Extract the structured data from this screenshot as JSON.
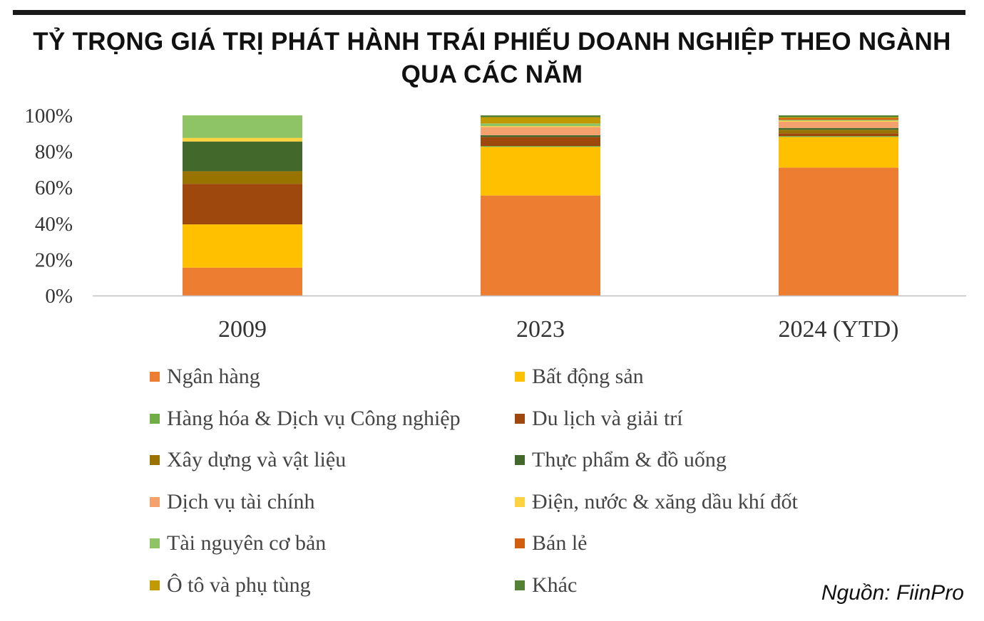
{
  "title_line1": "TỶ TRỌNG GIÁ TRỊ PHÁT HÀNH TRÁI PHIẾU DOANH NGHIỆP THEO NGÀNH",
  "title_line2": "QUA CÁC NĂM",
  "source": "Nguồn: FiinPro",
  "chart_data": {
    "type": "bar",
    "stacked": true,
    "categories": [
      "2009",
      "2023",
      "2024 (YTD)"
    ],
    "ylim": [
      0,
      100
    ],
    "yticks": [
      "0%",
      "20%",
      "40%",
      "60%",
      "80%",
      "100%"
    ],
    "grid": false,
    "legend_position": "bottom",
    "series": [
      {
        "name": "Ngân hàng",
        "color": "#ED7D31",
        "values": [
          15.5,
          55.5,
          71
        ]
      },
      {
        "name": "Bất động sản",
        "color": "#FFC000",
        "values": [
          24,
          27,
          17
        ]
      },
      {
        "name": "Hàng hóa & Dịch vụ Công nghiệp",
        "color": "#70AD47",
        "values": [
          0,
          0.5,
          0.5
        ]
      },
      {
        "name": "Du lịch và giải trí",
        "color": "#9E480E",
        "values": [
          22.5,
          5,
          1.5
        ]
      },
      {
        "name": "Xây dựng và vật liệu",
        "color": "#997300",
        "values": [
          7,
          0,
          2
        ]
      },
      {
        "name": "Thực phẩm & đồ uống",
        "color": "#43682B",
        "values": [
          16.5,
          1,
          1
        ]
      },
      {
        "name": "Dịch vụ tài chính",
        "color": "#F4A16E",
        "values": [
          0,
          4.5,
          3.5
        ]
      },
      {
        "name": "Điện, nước & xăng dầu khí đốt",
        "color": "#FFD23F",
        "values": [
          2,
          0.5,
          0.5
        ]
      },
      {
        "name": "Tài nguyên cơ bản",
        "color": "#8FC466",
        "values": [
          12.5,
          1.5,
          0.5
        ]
      },
      {
        "name": "Bán lẻ",
        "color": "#D25F10",
        "values": [
          0,
          0,
          1
        ]
      },
      {
        "name": "Ô tô và phụ tùng",
        "color": "#C09A00",
        "values": [
          0,
          3.5,
          0.5
        ]
      },
      {
        "name": "Khác",
        "color": "#548235",
        "values": [
          0,
          1,
          1
        ]
      }
    ]
  }
}
